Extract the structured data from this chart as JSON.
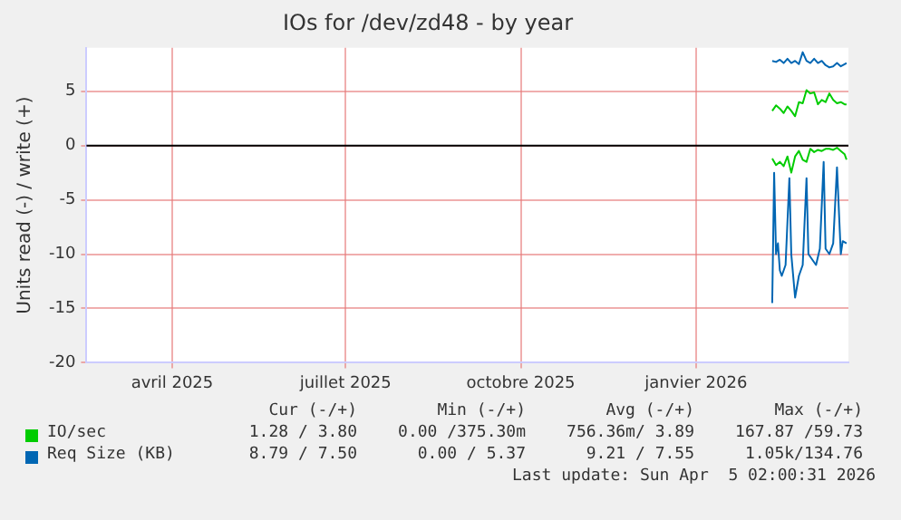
{
  "chart_data": {
    "type": "line",
    "title": "IOs for /dev/zd48 - by year",
    "ylabel": "Units read (-) / write (+)",
    "xlim": [
      "2025-03-01",
      "2026-04-05"
    ],
    "xticks": [
      {
        "value": "2025-04-15",
        "label": "avril 2025"
      },
      {
        "value": "2025-07-15",
        "label": "juillet 2025"
      },
      {
        "value": "2025-10-15",
        "label": "octobre 2025"
      },
      {
        "value": "2026-01-15",
        "label": "janvier 2026"
      }
    ],
    "ylim": [
      -20,
      9
    ],
    "yticks": [
      -20,
      -15,
      -10,
      -5,
      0,
      5
    ],
    "grid": true,
    "legend": "bottom",
    "marker": "none",
    "ref_lines": [
      {
        "axis": "y",
        "value": 0,
        "color": "#000000"
      }
    ],
    "series": [
      {
        "name": "IO/sec",
        "color": "#00cc00",
        "x": [
          "2026-02-24",
          "2026-02-26",
          "2026-02-28",
          "2026-03-02",
          "2026-03-04",
          "2026-03-06",
          "2026-03-08",
          "2026-03-10",
          "2026-03-12",
          "2026-03-14",
          "2026-03-16",
          "2026-03-18",
          "2026-03-20",
          "2026-03-22",
          "2026-03-24",
          "2026-03-26",
          "2026-03-28",
          "2026-03-30",
          "2026-04-01",
          "2026-04-03",
          "2026-04-04"
        ],
        "values": [
          3.2,
          3.7,
          3.4,
          3.0,
          3.6,
          3.2,
          2.7,
          4.0,
          3.9,
          5.1,
          4.8,
          4.9,
          3.8,
          4.2,
          4.0,
          4.8,
          4.2,
          3.9,
          4.0,
          3.8,
          3.8
        ]
      },
      {
        "color": "#00cc00",
        "x": [
          "2026-02-24",
          "2026-02-26",
          "2026-02-28",
          "2026-03-02",
          "2026-03-04",
          "2026-03-06",
          "2026-03-08",
          "2026-03-10",
          "2026-03-12",
          "2026-03-14",
          "2026-03-16",
          "2026-03-18",
          "2026-03-20",
          "2026-03-22",
          "2026-03-24",
          "2026-03-26",
          "2026-03-28",
          "2026-03-30",
          "2026-04-01",
          "2026-04-03",
          "2026-04-04"
        ],
        "values": [
          -1.2,
          -1.8,
          -1.5,
          -1.9,
          -1.0,
          -2.5,
          -1.0,
          -0.5,
          -1.3,
          -1.5,
          -0.3,
          -0.6,
          -0.4,
          -0.5,
          -0.3,
          -0.3,
          -0.4,
          -0.2,
          -0.5,
          -0.8,
          -1.3
        ]
      },
      {
        "name": "Req Size (KB)",
        "color": "#0066b3",
        "x": [
          "2026-02-24",
          "2026-02-26",
          "2026-02-28",
          "2026-03-02",
          "2026-03-04",
          "2026-03-06",
          "2026-03-08",
          "2026-03-10",
          "2026-03-12",
          "2026-03-14",
          "2026-03-16",
          "2026-03-18",
          "2026-03-20",
          "2026-03-22",
          "2026-03-24",
          "2026-03-26",
          "2026-03-28",
          "2026-03-30",
          "2026-04-01",
          "2026-04-03",
          "2026-04-04"
        ],
        "values": [
          7.8,
          7.7,
          7.9,
          7.6,
          8.0,
          7.6,
          7.8,
          7.5,
          8.6,
          7.8,
          7.6,
          8.0,
          7.6,
          7.8,
          7.4,
          7.2,
          7.3,
          7.6,
          7.3,
          7.5,
          7.6
        ]
      },
      {
        "color": "#0066b3",
        "x": [
          "2026-02-24",
          "2026-02-25",
          "2026-02-26",
          "2026-02-27",
          "2026-02-28",
          "2026-03-01",
          "2026-03-03",
          "2026-03-05",
          "2026-03-06",
          "2026-03-08",
          "2026-03-10",
          "2026-03-12",
          "2026-03-14",
          "2026-03-15",
          "2026-03-17",
          "2026-03-19",
          "2026-03-21",
          "2026-03-23",
          "2026-03-24",
          "2026-03-26",
          "2026-03-28",
          "2026-03-30",
          "2026-04-01",
          "2026-04-02",
          "2026-04-04"
        ],
        "values": [
          -14.5,
          -2.5,
          -10,
          -9,
          -11.5,
          -12,
          -11,
          -3,
          -10,
          -14,
          -12,
          -11,
          -3,
          -10,
          -10.5,
          -11,
          -9.5,
          -1.5,
          -9.5,
          -10,
          -9,
          -2,
          -10,
          -8.8,
          -9
        ]
      }
    ],
    "annotations": [
      "Cur (-/+)",
      "Min (-/+)",
      "Avg (-/+)",
      "Max (-/+)",
      "1.28 / 3.80",
      "0.00 /375.30m",
      "756.36m/ 3.89",
      "167.87 /59.73",
      "8.79 / 7.50",
      "0.00 / 5.37",
      "9.21 / 7.55",
      "1.05k/134.76",
      "Last update: Sun Apr  5 02:00:31 2026"
    ]
  }
}
